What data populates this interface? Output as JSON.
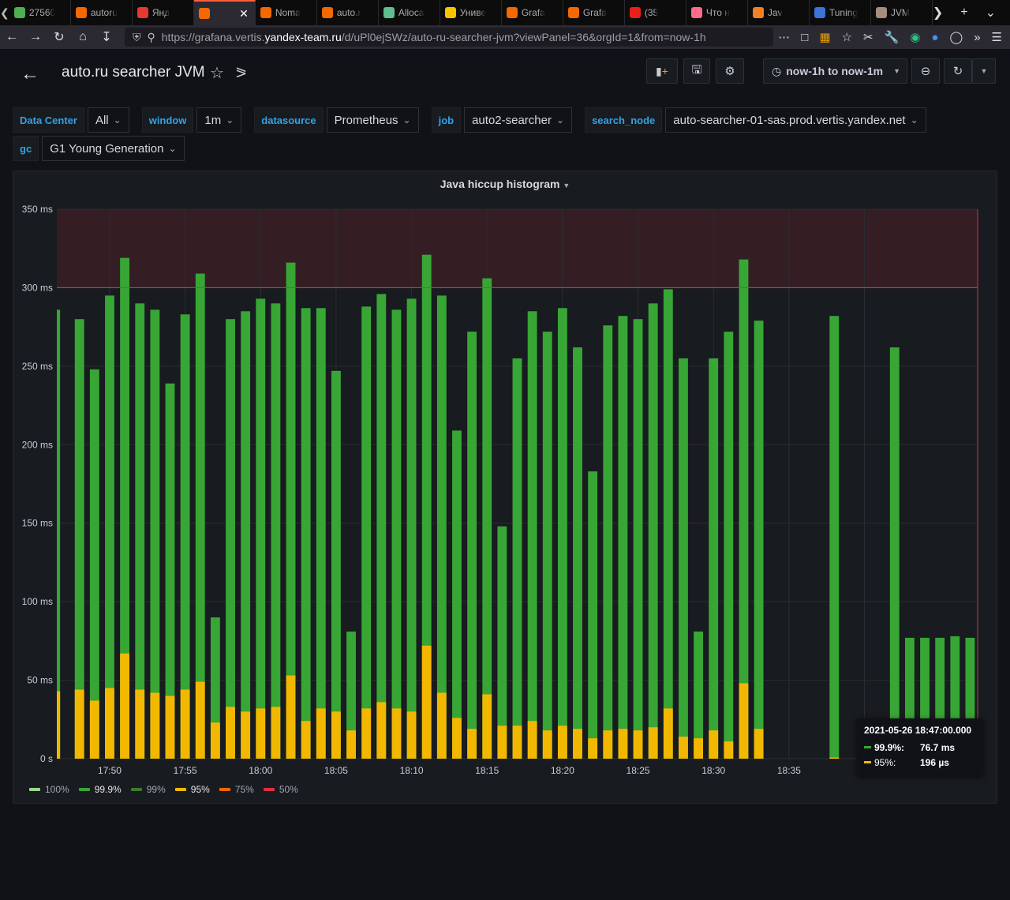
{
  "browser": {
    "tabs": [
      {
        "label": "27560",
        "color": "#4caf50"
      },
      {
        "label": "autoru",
        "color": "#f46800"
      },
      {
        "label": "Янд",
        "color": "#e8382c"
      },
      {
        "label": "",
        "color": "#f46800",
        "active": true
      },
      {
        "label": "Noma",
        "color": "#f46800"
      },
      {
        "label": "auto.r",
        "color": "#f46800"
      },
      {
        "label": "Alloca",
        "color": "#5fbf8f"
      },
      {
        "label": "Униве",
        "color": "#f7c400"
      },
      {
        "label": "Grafa",
        "color": "#f46800"
      },
      {
        "label": "Grafa",
        "color": "#f46800"
      },
      {
        "label": "(35",
        "color": "#e62117"
      },
      {
        "label": "Что н",
        "color": "#ff6b8a"
      },
      {
        "label": "Jav",
        "color": "#f48024"
      },
      {
        "label": "Tuning",
        "color": "#3b73d6"
      },
      {
        "label": "JVM",
        "color": "#a78b7d"
      }
    ],
    "url_prefix": "https://grafana.vertis.",
    "url_host": "yandex-team.ru",
    "url_path": "/d/uPl0ejSWz/auto-ru-searcher-jvm?viewPanel=36&orgId=1&from=now-1h",
    "tab_close": "✕"
  },
  "header": {
    "title": "auto.ru searcher JVM",
    "time_range": "now-1h to now-1m"
  },
  "variables": {
    "row1": [
      {
        "label": "Data Center",
        "value": "All"
      },
      {
        "label": "window",
        "value": "1m"
      },
      {
        "label": "datasource",
        "value": "Prometheus"
      },
      {
        "label": "job",
        "value": "auto2-searcher"
      },
      {
        "label": "search_node",
        "value": "auto-searcher-01-sas.prod.vertis.yandex.net"
      }
    ],
    "row2": [
      {
        "label": "gc",
        "value": "G1 Young Generation"
      }
    ]
  },
  "panel": {
    "title": "Java hiccup histogram",
    "threshold_ms": 300,
    "tooltip": {
      "time": "2021-05-26 18:47:00.000",
      "rows": [
        {
          "label": "99.9%:",
          "value": "76.7 ms",
          "color": "#37a635"
        },
        {
          "label": "95%:",
          "value": "196 µs",
          "color": "#f2b800"
        }
      ]
    }
  },
  "chart_data": {
    "type": "bar",
    "ylim": [
      0,
      350
    ],
    "y_ticks": [
      "0 s",
      "50 ms",
      "100 ms",
      "150 ms",
      "200 ms",
      "250 ms",
      "300 ms",
      "350 ms"
    ],
    "x_ticks": [
      "17:50",
      "17:55",
      "18:00",
      "18:05",
      "18:10",
      "18:15",
      "18:20",
      "18:25",
      "18:30",
      "18:35",
      "1"
    ],
    "x_start": "17:47",
    "series": [
      {
        "name": "99.9%",
        "color": "#37a635",
        "values": [
          286,
          280,
          248,
          295,
          319,
          290,
          286,
          239,
          283,
          309,
          90,
          280,
          285,
          293,
          290,
          316,
          287,
          287,
          247,
          81,
          288,
          296,
          286,
          293,
          321,
          295,
          209,
          272,
          306,
          148,
          255,
          285,
          272,
          287,
          262,
          183,
          276,
          282,
          280,
          290,
          299,
          255,
          81,
          255,
          272,
          318,
          279,
          null,
          null,
          null,
          null,
          282,
          null,
          null,
          null,
          262,
          77,
          77,
          77,
          78,
          77
        ]
      },
      {
        "name": "95%",
        "color": "#f2b800",
        "values": [
          43,
          44,
          37,
          45,
          67,
          44,
          42,
          40,
          44,
          49,
          23,
          33,
          30,
          32,
          33,
          53,
          24,
          32,
          30,
          18,
          32,
          36,
          32,
          30,
          72,
          42,
          26,
          19,
          41,
          21,
          21,
          24,
          18,
          21,
          19,
          13,
          18,
          19,
          18,
          20,
          32,
          14,
          13,
          18,
          11,
          48,
          19,
          null,
          null,
          null,
          null,
          0.2,
          null,
          null,
          null,
          null,
          null,
          null,
          null,
          null,
          null
        ]
      }
    ],
    "legend": [
      {
        "name": "100%",
        "color": "#96d98d"
      },
      {
        "name": "99.9%",
        "color": "#37a635"
      },
      {
        "name": "99%",
        "color": "#3d7a2f"
      },
      {
        "name": "95%",
        "color": "#f2b800"
      },
      {
        "name": "75%",
        "color": "#fa6400"
      },
      {
        "name": "50%",
        "color": "#e02f44"
      }
    ]
  }
}
